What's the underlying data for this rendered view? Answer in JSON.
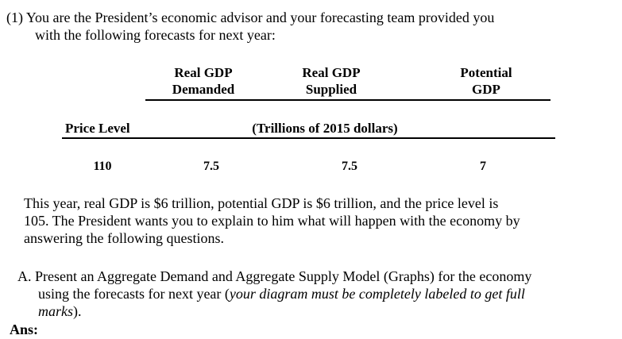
{
  "intro": {
    "line1": "(1) You are the President’s economic advisor and your forecasting team provided you",
    "line2": "with the following forecasts for next year:"
  },
  "table": {
    "headers": {
      "rgdp_demanded": [
        "Real GDP",
        "Demanded"
      ],
      "rgdp_supplied": [
        "Real GDP",
        "Supplied"
      ],
      "potential": [
        "Potential",
        "GDP"
      ]
    },
    "price_level_label": "Price Level",
    "units_label": "(Trillions of 2015 dollars)",
    "row": {
      "price_level": "110",
      "demanded": "7.5",
      "supplied": "7.5",
      "potential": "7"
    }
  },
  "paragraph": {
    "line1": "This year, real GDP is $6 trillion, potential GDP is $6 trillion, and the price level is",
    "line2": "105. The President wants you to explain to him what will happen with the economy by",
    "line3": "answering the following questions."
  },
  "question_a": {
    "line1": "A. Present an Aggregate Demand and Aggregate Supply Model (Graphs) for the economy",
    "line2_plain": "using the forecasts for next year (",
    "line2_italic": "your diagram must be completely labeled to get full",
    "line3_italic": "marks",
    "line3_plain": ")."
  },
  "answer_label": "Ans:"
}
